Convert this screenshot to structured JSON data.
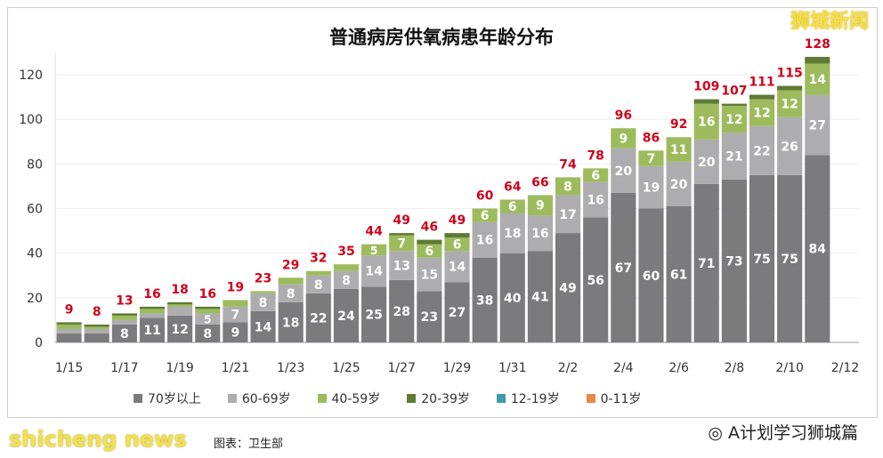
{
  "chart_data": {
    "type": "bar",
    "stacked": true,
    "title": "普通病房供氧病患年龄分布",
    "categories": [
      "1/15",
      "1/16",
      "1/17",
      "1/18",
      "1/19",
      "1/20",
      "1/21",
      "1/22",
      "1/23",
      "1/24",
      "1/25",
      "1/26",
      "1/27",
      "1/28",
      "1/29",
      "1/30",
      "1/31",
      "2/1",
      "2/2",
      "2/3",
      "2/4",
      "2/5",
      "2/6",
      "2/7",
      "2/8",
      "2/9",
      "2/10",
      "2/11",
      "2/12"
    ],
    "xticks": [
      "1/15",
      "1/17",
      "1/19",
      "1/21",
      "1/23",
      "1/25",
      "1/27",
      "1/29",
      "1/31",
      "2/2",
      "2/4",
      "2/6",
      "2/8",
      "2/10",
      "2/12"
    ],
    "totals": [
      9,
      8,
      13,
      16,
      18,
      16,
      19,
      23,
      29,
      32,
      35,
      44,
      49,
      46,
      49,
      60,
      64,
      66,
      74,
      78,
      96,
      86,
      92,
      109,
      107,
      111,
      115,
      128,
      null
    ],
    "series": [
      {
        "name": "70岁以上",
        "color": "#7b7b7d",
        "values": [
          4,
          4,
          8,
          11,
          12,
          8,
          9,
          14,
          18,
          22,
          24,
          25,
          28,
          23,
          27,
          38,
          40,
          41,
          49,
          56,
          67,
          60,
          61,
          71,
          73,
          75,
          75,
          84,
          0
        ]
      },
      {
        "name": "60-69岁",
        "color": "#adadaf",
        "values": [
          2,
          2,
          2,
          2,
          4,
          5,
          7,
          8,
          8,
          8,
          8,
          14,
          13,
          15,
          14,
          16,
          18,
          16,
          17,
          16,
          20,
          19,
          20,
          20,
          21,
          22,
          26,
          27,
          0
        ]
      },
      {
        "name": "40-59岁",
        "color": "#9dbb5c",
        "values": [
          2,
          1,
          2,
          2,
          1,
          2,
          3,
          1,
          3,
          2,
          3,
          5,
          7,
          6,
          6,
          6,
          6,
          9,
          8,
          6,
          9,
          7,
          11,
          16,
          12,
          12,
          12,
          14,
          0
        ]
      },
      {
        "name": "20-39岁",
        "color": "#5f7a34",
        "values": [
          1,
          1,
          1,
          1,
          1,
          1,
          0,
          0,
          0,
          0,
          0,
          0,
          1,
          2,
          2,
          0,
          0,
          0,
          0,
          0,
          0,
          0,
          0,
          2,
          1,
          2,
          2,
          3,
          0
        ]
      },
      {
        "name": "12-19岁",
        "color": "#3f9aa8",
        "values": [
          0,
          0,
          0,
          0,
          0,
          0,
          0,
          0,
          0,
          0,
          0,
          0,
          0,
          0,
          0,
          0,
          0,
          0,
          0,
          0,
          0,
          0,
          0,
          0,
          0,
          0,
          0,
          0,
          0
        ]
      },
      {
        "name": "0-11岁",
        "color": "#e5894a",
        "values": [
          0,
          0,
          0,
          0,
          0,
          0,
          0,
          0,
          0,
          0,
          0,
          0,
          0,
          0,
          0,
          0,
          0,
          0,
          0,
          0,
          0,
          0,
          0,
          0,
          0,
          0,
          0,
          0,
          0
        ]
      }
    ],
    "ylim": [
      0,
      130
    ],
    "yticks": [
      0,
      20,
      40,
      60,
      80,
      100,
      120
    ],
    "grid": true,
    "legend": "bottom",
    "total_color": "#d0021b"
  },
  "watermarks": {
    "top_right": "狮城新闻",
    "bottom_right": "A计划学习狮城篇",
    "bottom_left": "shicheng news",
    "source": "图表：卫生部"
  }
}
